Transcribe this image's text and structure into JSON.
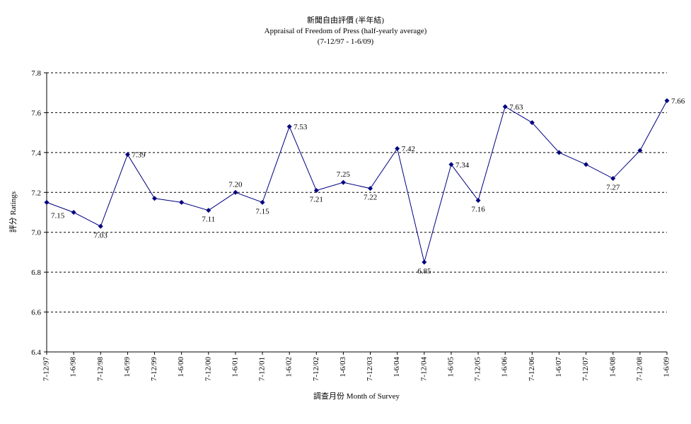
{
  "chart_data": {
    "type": "line",
    "title_zh": "新聞自由評價 (半年結)",
    "title": "Appraisal of Freedom of Press (half-yearly average)",
    "subtitle": "(7-12/97 - 1-6/09)",
    "xlabel": "調查月份 Month of Survey",
    "ylabel": "評分 Ratings",
    "ylim": [
      6.4,
      7.8
    ],
    "yticks": [
      "6.4",
      "6.6",
      "6.8",
      "7.0",
      "7.2",
      "7.4",
      "7.6",
      "7.8"
    ],
    "grid": "horizontal dashed",
    "legend": "none",
    "categories": [
      "7-12/97",
      "1-6/98",
      "7-12/98",
      "1-6/99",
      "7-12/99",
      "1-6/00",
      "7-12/00",
      "1-6/01",
      "7-12/01",
      "1-6/02",
      "7-12/02",
      "1-6/03",
      "7-12/03",
      "1-6/04",
      "7-12/04",
      "1-6/05",
      "7-12/05",
      "1-6/06",
      "7-12/06",
      "1-6/07",
      "7-12/07",
      "1-6/08",
      "7-12/08",
      "1-6/09"
    ],
    "series": [
      {
        "color": "#000080",
        "values": [
          7.15,
          7.1,
          7.03,
          7.39,
          7.17,
          7.15,
          7.11,
          7.2,
          7.15,
          7.53,
          7.21,
          7.25,
          7.22,
          7.42,
          6.85,
          7.34,
          7.16,
          7.63,
          7.55,
          7.4,
          7.34,
          7.27,
          7.41,
          7.66
        ],
        "data_labels": [
          "7.15",
          "",
          "7.03",
          "7.39",
          "",
          "",
          "7.11",
          "7.20",
          "7.15",
          "7.53",
          "7.21",
          "7.25",
          "7.22",
          "7.42",
          "6.85",
          "7.34",
          "7.16",
          "7.63",
          "",
          "",
          "",
          "7.27",
          "",
          "7.66"
        ]
      }
    ]
  }
}
